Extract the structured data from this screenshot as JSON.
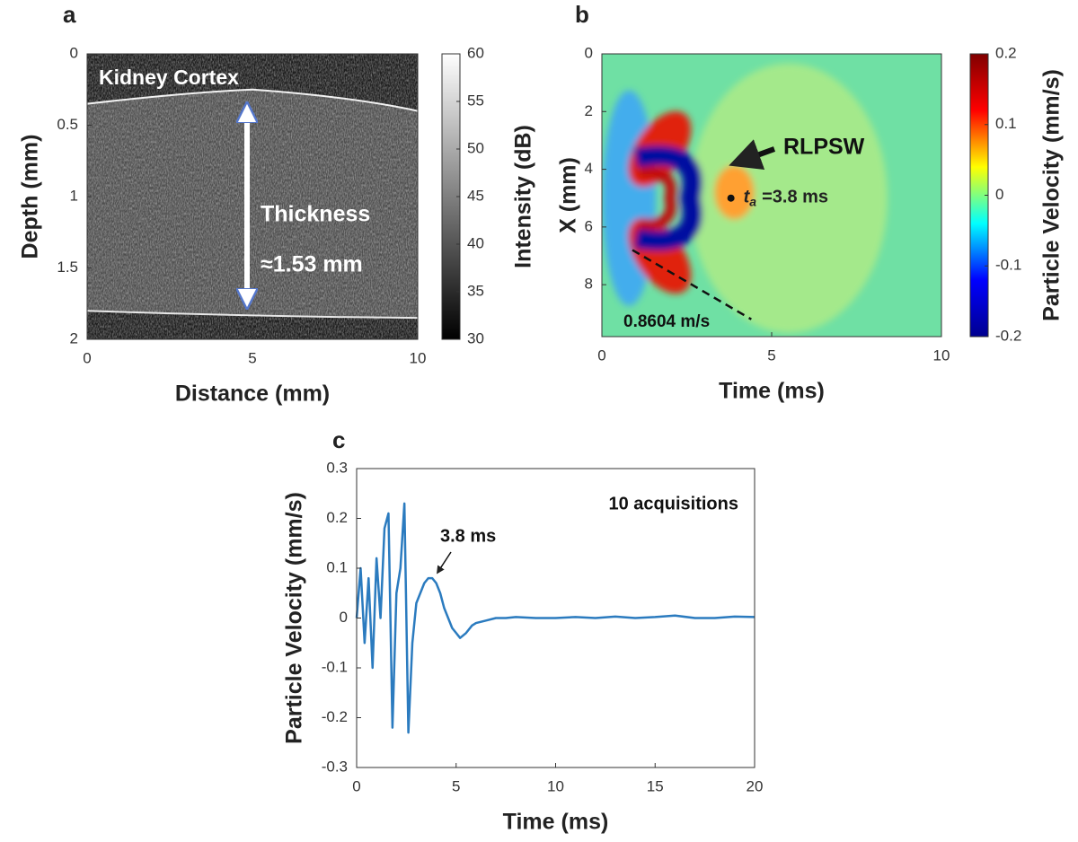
{
  "chart_data": [
    {
      "type": "image",
      "panel_label": "a",
      "xlabel": "Distance (mm)",
      "ylabel": "Depth (mm)",
      "xlim": [
        0,
        10
      ],
      "xticks": [
        0,
        5,
        10
      ],
      "ylim": [
        2,
        0
      ],
      "yticks": [
        0,
        0.5,
        1,
        1.5,
        2
      ],
      "colormap": "gray",
      "colorbar": {
        "label": "Intensity (dB)",
        "lim": [
          30,
          60
        ],
        "ticks": [
          30,
          35,
          40,
          45,
          50,
          55,
          60
        ]
      },
      "annotations": [
        "Kidney Cortex",
        "Thickness",
        "≈1.53 mm"
      ]
    },
    {
      "type": "heatmap",
      "panel_label": "b",
      "xlabel": "Time (ms)",
      "ylabel": "X (mm)",
      "xlim": [
        0,
        10
      ],
      "xticks": [
        0,
        5,
        10
      ],
      "ylim": [
        9.8,
        0
      ],
      "yticks": [
        0,
        2,
        4,
        6,
        8
      ],
      "colormap": "jet",
      "colorbar": {
        "label": "Particle Velocity (mm/s)",
        "lim": [
          -0.2,
          0.2
        ],
        "ticks": [
          -0.2,
          -0.1,
          0,
          0.1,
          0.2
        ]
      },
      "annotations": [
        "RLPSW",
        "0.8604 m/s"
      ],
      "arrival": {
        "x": 3.8,
        "y": 5,
        "symbol": "t",
        "subscript": "a",
        "text": "=3.8 ms"
      }
    },
    {
      "type": "line",
      "panel_label": "c",
      "xlabel": "Time (ms)",
      "ylabel": "Particle Velocity (mm/s)",
      "xlim": [
        0,
        20
      ],
      "xticks": [
        0,
        5,
        10,
        15,
        20
      ],
      "ylim": [
        -0.3,
        0.3
      ],
      "yticks": [
        -0.3,
        -0.2,
        -0.1,
        0,
        0.1,
        0.2,
        0.3
      ],
      "x": [
        0,
        0.2,
        0.4,
        0.6,
        0.8,
        1.0,
        1.2,
        1.4,
        1.6,
        1.8,
        2.0,
        2.2,
        2.4,
        2.6,
        2.8,
        3.0,
        3.2,
        3.4,
        3.6,
        3.8,
        4.0,
        4.2,
        4.4,
        4.6,
        4.8,
        5.0,
        5.2,
        5.5,
        5.8,
        6,
        6.5,
        7,
        7.5,
        8,
        9,
        10,
        11,
        12,
        13,
        14,
        15,
        16,
        17,
        18,
        19,
        20
      ],
      "values": [
        0,
        0.1,
        -0.05,
        0.08,
        -0.1,
        0.12,
        0.0,
        0.18,
        0.21,
        -0.22,
        0.05,
        0.1,
        0.23,
        -0.23,
        -0.05,
        0.03,
        0.05,
        0.07,
        0.08,
        0.08,
        0.07,
        0.05,
        0.02,
        0,
        -0.02,
        -0.03,
        -0.04,
        -0.03,
        -0.015,
        -0.01,
        -0.005,
        0,
        0,
        0.002,
        0,
        0,
        0.002,
        0,
        0.003,
        0,
        0.002,
        0.005,
        0,
        0,
        0.003,
        0.002
      ],
      "color": "#2b7bbf",
      "annotations": [
        "10 acquisitions",
        "3.8 ms"
      ]
    }
  ]
}
